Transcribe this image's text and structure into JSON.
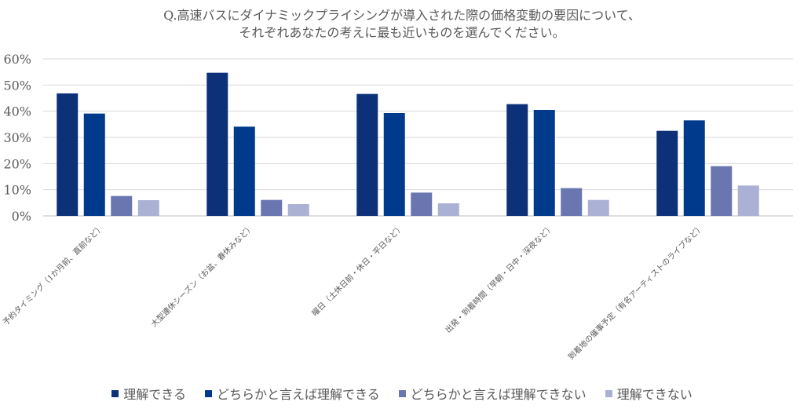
{
  "title_lines": [
    "Q.高速バスにダイナミックプライシングが導入された際の価格変動の要因について、",
    "それぞれあなたの考えに最も近いものを選んでください。"
  ],
  "chart_data": {
    "type": "bar",
    "title": "Q.高速バスにダイナミックプライシングが導入された際の価格変動の要因について、それぞれあなたの考えに最も近いものを選んでください。",
    "categories": [
      "予約タイミング（1か月前、直前など）",
      "大型連休シーズン（お盆、春休みなど）",
      "曜日（土休日前・休日・平日など）",
      "出発・到着時間（早朝・日中・深夜など）",
      "到着地の催事予定（有名アーティストのライブなど）"
    ],
    "series": [
      {
        "name": "理解できる",
        "color": "#0d3178",
        "values": [
          46.8,
          54.7,
          46.6,
          42.7,
          32.5
        ]
      },
      {
        "name": "どちらかと言えば理解できる",
        "color": "#003a8c",
        "values": [
          39.1,
          34.1,
          39.3,
          40.5,
          36.5
        ]
      },
      {
        "name": "どちらかと言えば理解できない",
        "color": "#6a76b0",
        "values": [
          7.6,
          6.1,
          8.9,
          10.6,
          19.0
        ]
      },
      {
        "name": "理解できない",
        "color": "#aab1d4",
        "values": [
          6.0,
          4.5,
          4.8,
          6.1,
          11.6
        ]
      }
    ],
    "yticks": [
      "0%",
      "10%",
      "20%",
      "30%",
      "40%",
      "50%",
      "60%"
    ],
    "ylim": [
      0,
      60
    ],
    "grid": true,
    "legend_position": "bottom"
  }
}
